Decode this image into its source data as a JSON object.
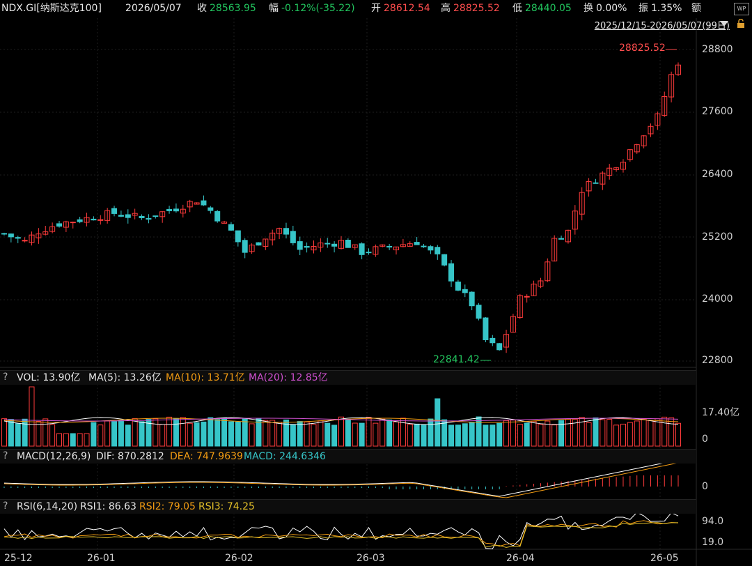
{
  "header": {
    "symbol": "NDX.GI[纳斯达克100]",
    "date": "2026/05/07",
    "close_label": "收",
    "close_value": "28563.95",
    "change_label": "幅",
    "change_value": "-0.12%(-35.22)",
    "open_label": "开",
    "open_value": "28612.54",
    "high_label": "高",
    "high_value": "28825.52",
    "low_label": "低",
    "low_value": "28440.05",
    "turnover_label": "换",
    "turnover_value": "0.00%",
    "amplitude_label": "振",
    "amplitude_value": "1.35%",
    "amount_label": "额"
  },
  "range": {
    "label": "2025/12/15-2026/05/07(99日)"
  },
  "price_axis": [
    "28800",
    "27600",
    "26400",
    "25200",
    "24000",
    "22800"
  ],
  "annotations": {
    "high": "28825.52",
    "low": "22841.42"
  },
  "volume": {
    "title": "VOL: 13.90亿",
    "ma5": "MA(5): 13.26亿",
    "ma10": "MA(10): 13.71亿",
    "ma20": "MA(20): 12.85亿",
    "axis_top": "17.40亿",
    "axis_zero": "0"
  },
  "macd": {
    "title": "MACD(12,26,9)",
    "dif": "DIF: 870.2812",
    "dea": "DEA: 747.9639",
    "macd": "MACD: 244.6346",
    "axis_zero": "0"
  },
  "rsi": {
    "title": "RSI(6,14,20)",
    "rsi1": "RSI1: 86.63",
    "rsi2": "RSI2: 79.05",
    "rsi3": "RSI3: 74.25",
    "axis_top": "94.0",
    "axis_bottom": "19.0"
  },
  "x_axis": [
    "25-12",
    "26-01",
    "26-02",
    "26-03",
    "26-04",
    "26-05"
  ],
  "colors": {
    "up": "#ff3b3b",
    "down": "#36c5c8",
    "background": "#000000",
    "grid": "#1e1e1e"
  },
  "icons": {
    "dropdown": "triangle-down-icon",
    "lock": "lock-icon",
    "logo": "wp-logo-icon"
  }
}
